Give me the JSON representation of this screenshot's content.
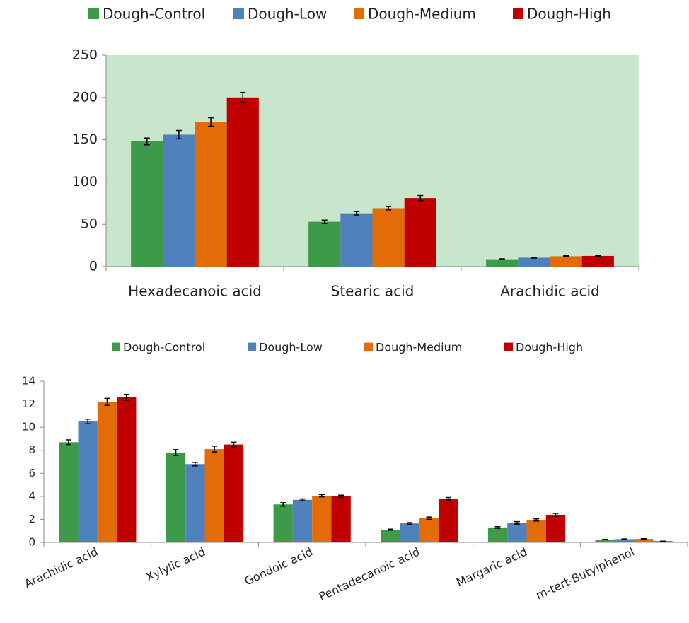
{
  "chart_data": [
    {
      "type": "bar",
      "categories": [
        "Hexadecanoic acid",
        "Stearic acid",
        "Arachidic acid"
      ],
      "series": [
        {
          "name": "Dough-Control",
          "color": "#3d9a48",
          "values": [
            148,
            53,
            8.7
          ],
          "errors": [
            4,
            2,
            0.5
          ]
        },
        {
          "name": "Dough-Low",
          "color": "#4f81bd",
          "values": [
            156,
            63,
            10.5
          ],
          "errors": [
            5,
            2,
            0.5
          ]
        },
        {
          "name": "Dough-Medium",
          "color": "#e36c09",
          "values": [
            171,
            69,
            12.2
          ],
          "errors": [
            5,
            2,
            0.5
          ]
        },
        {
          "name": "Dough-High",
          "color": "#c00000",
          "values": [
            200,
            81,
            12.6
          ],
          "errors": [
            6,
            3,
            0.5
          ]
        }
      ],
      "ylim": [
        0,
        250
      ],
      "yticks": [
        0,
        50,
        100,
        150,
        200,
        250
      ],
      "plot_background": "#c8e6cc",
      "legend": "top"
    },
    {
      "type": "bar",
      "categories": [
        "Arachidic acid",
        "Xylylic acid",
        "Gondoic acid",
        "Pentadecanoic acid",
        "Margaric acid",
        "m-tert-Butylphenol"
      ],
      "series": [
        {
          "name": "Dough-Control",
          "color": "#3d9a48",
          "values": [
            8.7,
            7.8,
            3.3,
            1.1,
            1.3,
            0.25
          ],
          "errors": [
            0.2,
            0.25,
            0.15,
            0.05,
            0.07,
            0.02
          ]
        },
        {
          "name": "Dough-Low",
          "color": "#4f81bd",
          "values": [
            10.5,
            6.8,
            3.7,
            1.65,
            1.7,
            0.28
          ],
          "errors": [
            0.2,
            0.15,
            0.08,
            0.06,
            0.1,
            0.02
          ]
        },
        {
          "name": "Dough-Medium",
          "color": "#e36c09",
          "values": [
            12.2,
            8.1,
            4.05,
            2.1,
            1.95,
            0.3
          ],
          "errors": [
            0.3,
            0.25,
            0.1,
            0.1,
            0.1,
            0.02
          ]
        },
        {
          "name": "Dough-High",
          "color": "#c00000",
          "values": [
            12.6,
            8.5,
            4.0,
            3.8,
            2.4,
            0.1
          ],
          "errors": [
            0.25,
            0.2,
            0.1,
            0.1,
            0.12,
            0.01
          ]
        }
      ],
      "ylim": [
        0,
        14
      ],
      "yticks": [
        0,
        2,
        4,
        6,
        8,
        10,
        12,
        14
      ],
      "legend": "top"
    }
  ]
}
